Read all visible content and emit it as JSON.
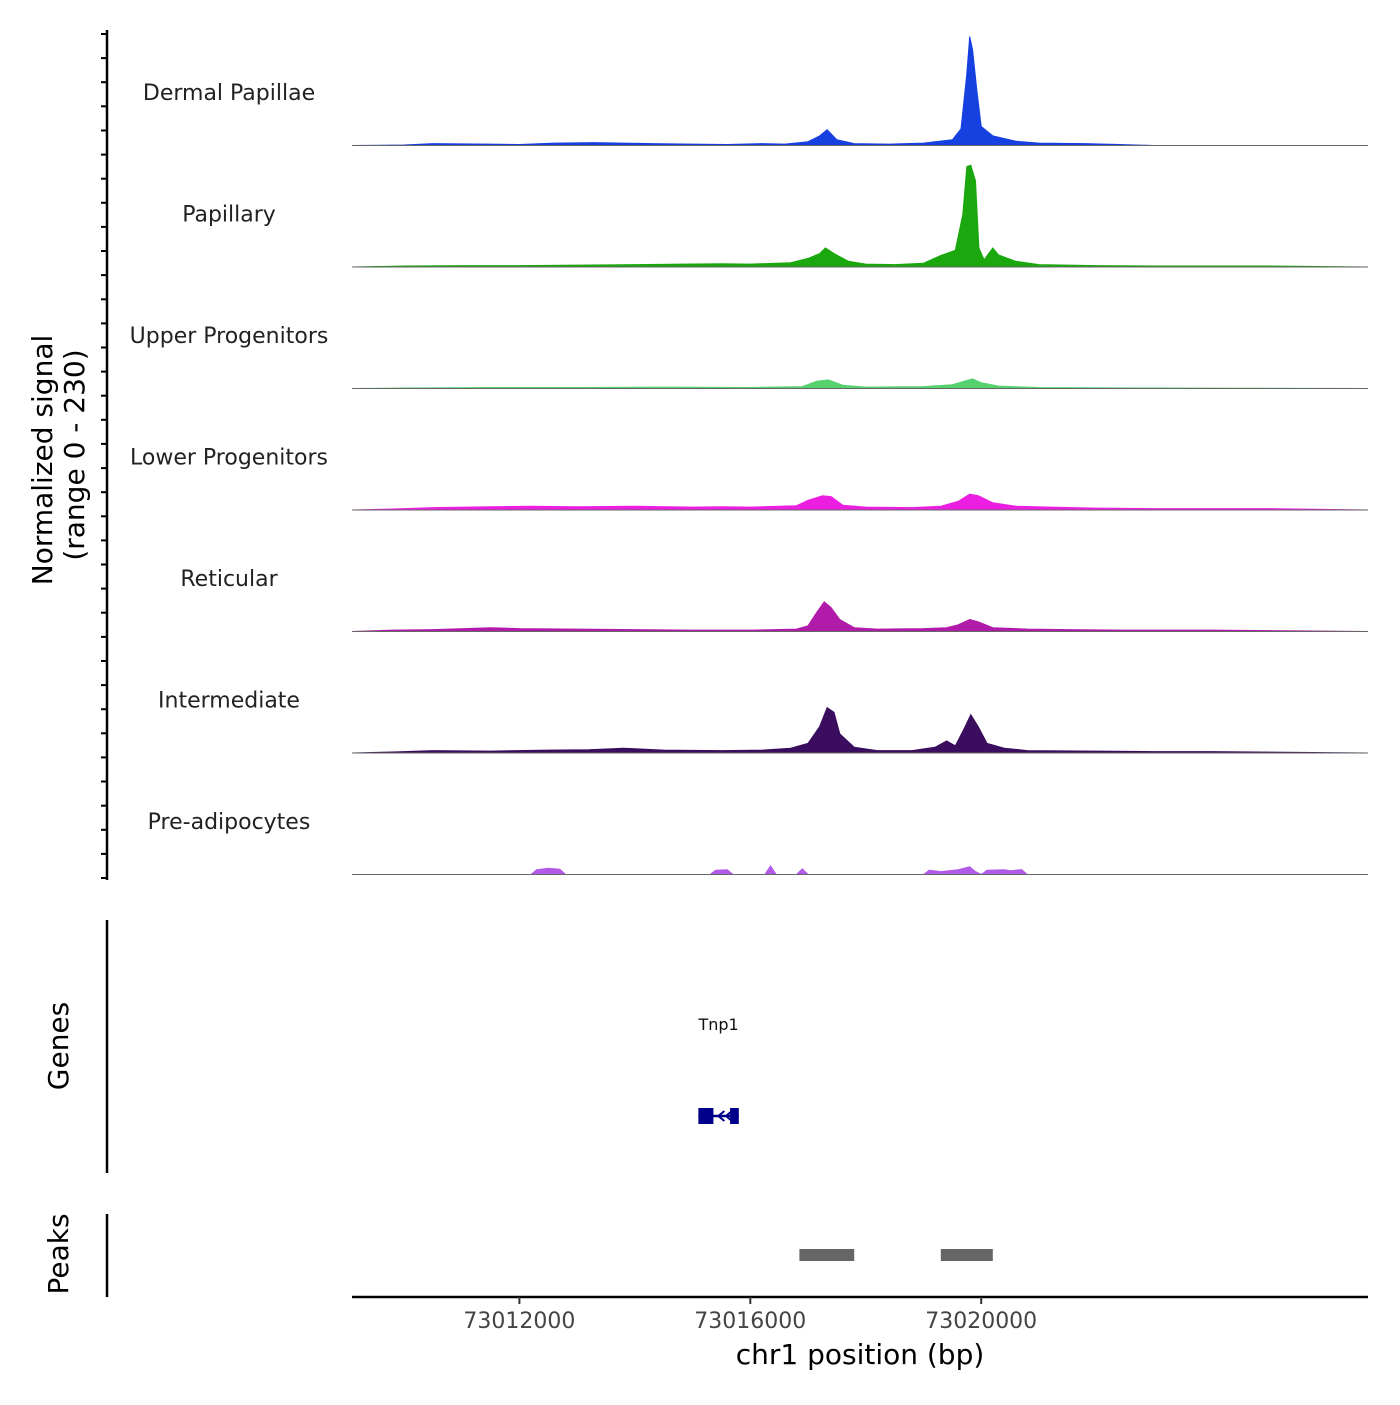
{
  "chart_data": {
    "type": "area",
    "title": "",
    "xlabel": "chr1 position (bp)",
    "ylabel": "Normalized signal",
    "ylabel_range": "(range 0 - 230)",
    "ylim": [
      0,
      230
    ],
    "xlim": [
      73009100,
      73026700
    ],
    "x_ticks": [
      73012000,
      73016000,
      73020000
    ],
    "x_tick_labels": [
      "73012000",
      "73016000",
      "73020000"
    ],
    "tracks": [
      {
        "name": "Dermal Papillae",
        "color": "#1740e0",
        "points": [
          [
            73009100,
            0
          ],
          [
            73010000,
            1
          ],
          [
            73010500,
            4
          ],
          [
            73011500,
            3
          ],
          [
            73012000,
            2
          ],
          [
            73012600,
            5
          ],
          [
            73013300,
            6
          ],
          [
            73013800,
            5
          ],
          [
            73014300,
            4
          ],
          [
            73015000,
            3
          ],
          [
            73015600,
            2
          ],
          [
            73016200,
            4
          ],
          [
            73016600,
            3
          ],
          [
            73017000,
            8
          ],
          [
            73017200,
            20
          ],
          [
            73017330,
            33
          ],
          [
            73017500,
            12
          ],
          [
            73017800,
            4
          ],
          [
            73018400,
            3
          ],
          [
            73019000,
            5
          ],
          [
            73019200,
            8
          ],
          [
            73019500,
            12
          ],
          [
            73019650,
            35
          ],
          [
            73019750,
            150
          ],
          [
            73019800,
            228
          ],
          [
            73019850,
            200
          ],
          [
            73019920,
            120
          ],
          [
            73020000,
            40
          ],
          [
            73020200,
            20
          ],
          [
            73020600,
            9
          ],
          [
            73021000,
            5
          ],
          [
            73021800,
            4
          ],
          [
            73022400,
            2
          ],
          [
            73023000,
            0
          ],
          [
            73026700,
            0
          ]
        ]
      },
      {
        "name": "Papillary",
        "color": "#1aa80e",
        "points": [
          [
            73009100,
            0
          ],
          [
            73010000,
            2
          ],
          [
            73011000,
            3
          ],
          [
            73012000,
            3
          ],
          [
            73013000,
            4
          ],
          [
            73014000,
            5
          ],
          [
            73014800,
            6
          ],
          [
            73015500,
            7
          ],
          [
            73016000,
            6
          ],
          [
            73016700,
            9
          ],
          [
            73017000,
            18
          ],
          [
            73017200,
            28
          ],
          [
            73017300,
            40
          ],
          [
            73017450,
            28
          ],
          [
            73017700,
            12
          ],
          [
            73018000,
            6
          ],
          [
            73018500,
            5
          ],
          [
            73019000,
            8
          ],
          [
            73019300,
            24
          ],
          [
            73019550,
            35
          ],
          [
            73019680,
            110
          ],
          [
            73019750,
            210
          ],
          [
            73019820,
            213
          ],
          [
            73019900,
            180
          ],
          [
            73019960,
            40
          ],
          [
            73020050,
            15
          ],
          [
            73020200,
            40
          ],
          [
            73020300,
            25
          ],
          [
            73020600,
            12
          ],
          [
            73021000,
            5
          ],
          [
            73022000,
            3
          ],
          [
            73023000,
            2
          ],
          [
            73024000,
            2
          ],
          [
            73025000,
            2
          ],
          [
            73026700,
            0
          ]
        ]
      },
      {
        "name": "Upper Progenitors",
        "color": "#55d16e",
        "points": [
          [
            73009100,
            0
          ],
          [
            73010000,
            1
          ],
          [
            73011500,
            2
          ],
          [
            73013000,
            2
          ],
          [
            73014500,
            3
          ],
          [
            73016000,
            2
          ],
          [
            73016900,
            4
          ],
          [
            73017150,
            15
          ],
          [
            73017350,
            18
          ],
          [
            73017600,
            7
          ],
          [
            73018000,
            3
          ],
          [
            73019000,
            4
          ],
          [
            73019500,
            8
          ],
          [
            73019700,
            15
          ],
          [
            73019850,
            20
          ],
          [
            73020000,
            12
          ],
          [
            73020300,
            5
          ],
          [
            73021000,
            2
          ],
          [
            73023000,
            1
          ],
          [
            73026700,
            0
          ]
        ]
      },
      {
        "name": "Lower Progenitors",
        "color": "#ec1ee2",
        "points": [
          [
            73009100,
            0
          ],
          [
            73009800,
            2
          ],
          [
            73010500,
            5
          ],
          [
            73011500,
            7
          ],
          [
            73012200,
            8
          ],
          [
            73013000,
            7
          ],
          [
            73014000,
            8
          ],
          [
            73015000,
            6
          ],
          [
            73015500,
            7
          ],
          [
            73016000,
            6
          ],
          [
            73016800,
            9
          ],
          [
            73017000,
            20
          ],
          [
            73017250,
            30
          ],
          [
            73017400,
            28
          ],
          [
            73017600,
            10
          ],
          [
            73018000,
            6
          ],
          [
            73018800,
            5
          ],
          [
            73019300,
            8
          ],
          [
            73019600,
            18
          ],
          [
            73019800,
            33
          ],
          [
            73019950,
            30
          ],
          [
            73020200,
            15
          ],
          [
            73020600,
            8
          ],
          [
            73021200,
            6
          ],
          [
            73022000,
            4
          ],
          [
            73023000,
            3
          ],
          [
            73024000,
            3
          ],
          [
            73025000,
            3
          ],
          [
            73026700,
            0
          ]
        ]
      },
      {
        "name": "Reticular",
        "color": "#b11ba9",
        "points": [
          [
            73009100,
            0
          ],
          [
            73009800,
            3
          ],
          [
            73010500,
            4
          ],
          [
            73011500,
            8
          ],
          [
            73012000,
            6
          ],
          [
            73013000,
            5
          ],
          [
            73014000,
            4
          ],
          [
            73015000,
            3
          ],
          [
            73016000,
            3
          ],
          [
            73016800,
            5
          ],
          [
            73017000,
            12
          ],
          [
            73017150,
            40
          ],
          [
            73017280,
            62
          ],
          [
            73017400,
            50
          ],
          [
            73017550,
            25
          ],
          [
            73017800,
            8
          ],
          [
            73018200,
            5
          ],
          [
            73019000,
            6
          ],
          [
            73019400,
            8
          ],
          [
            73019600,
            14
          ],
          [
            73019800,
            25
          ],
          [
            73019950,
            20
          ],
          [
            73020200,
            8
          ],
          [
            73020800,
            5
          ],
          [
            73021500,
            4
          ],
          [
            73022500,
            3
          ],
          [
            73024000,
            3
          ],
          [
            73026700,
            0
          ]
        ]
      },
      {
        "name": "Intermediate",
        "color": "#3a0d5e",
        "points": [
          [
            73009100,
            0
          ],
          [
            73009800,
            2
          ],
          [
            73010500,
            5
          ],
          [
            73011500,
            4
          ],
          [
            73012500,
            6
          ],
          [
            73013200,
            7
          ],
          [
            73013800,
            10
          ],
          [
            73014500,
            6
          ],
          [
            73015500,
            5
          ],
          [
            73016200,
            6
          ],
          [
            73016700,
            10
          ],
          [
            73017000,
            20
          ],
          [
            73017200,
            55
          ],
          [
            73017330,
            95
          ],
          [
            73017450,
            85
          ],
          [
            73017550,
            40
          ],
          [
            73017800,
            12
          ],
          [
            73018200,
            5
          ],
          [
            73018800,
            5
          ],
          [
            73019200,
            12
          ],
          [
            73019400,
            25
          ],
          [
            73019550,
            15
          ],
          [
            73019700,
            50
          ],
          [
            73019820,
            80
          ],
          [
            73019950,
            55
          ],
          [
            73020100,
            20
          ],
          [
            73020400,
            10
          ],
          [
            73020800,
            5
          ],
          [
            73022000,
            4
          ],
          [
            73023000,
            3
          ],
          [
            73024000,
            3
          ],
          [
            73026700,
            0
          ]
        ]
      },
      {
        "name": "Pre-adipocytes",
        "color": "#b25be8",
        "points": [
          [
            73009100,
            0
          ],
          [
            73012200,
            0
          ],
          [
            73012300,
            10
          ],
          [
            73012500,
            13
          ],
          [
            73012700,
            11
          ],
          [
            73012800,
            0
          ],
          [
            73015300,
            0
          ],
          [
            73015400,
            9
          ],
          [
            73015600,
            10
          ],
          [
            73015700,
            0
          ],
          [
            73016250,
            0
          ],
          [
            73016350,
            18
          ],
          [
            73016450,
            0
          ],
          [
            73016800,
            0
          ],
          [
            73016900,
            12
          ],
          [
            73017000,
            0
          ],
          [
            73019000,
            0
          ],
          [
            73019100,
            9
          ],
          [
            73019300,
            6
          ],
          [
            73019600,
            10
          ],
          [
            73019800,
            16
          ],
          [
            73019900,
            6
          ],
          [
            73020000,
            0
          ],
          [
            73020100,
            9
          ],
          [
            73020400,
            10
          ],
          [
            73020500,
            8
          ],
          [
            73020700,
            10
          ],
          [
            73020800,
            0
          ],
          [
            73026700,
            0
          ]
        ]
      }
    ],
    "genes": [
      {
        "name": "Tnp1",
        "start": 73015100,
        "end": 73015800,
        "strand": "-",
        "exons": [
          [
            73015100,
            73015360
          ],
          [
            73015650,
            73015800
          ]
        ]
      }
    ],
    "peaks": [
      {
        "start": 73016850,
        "end": 73017800
      },
      {
        "start": 73019300,
        "end": 73020200
      }
    ],
    "panel_labels": {
      "genes": "Genes",
      "peaks": "Peaks"
    }
  }
}
